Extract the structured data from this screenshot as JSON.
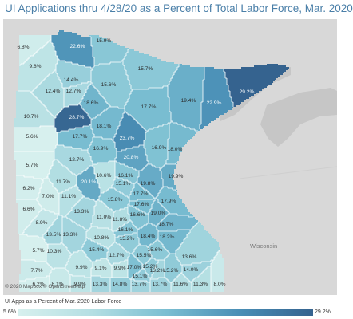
{
  "title": "UI Applications thru 4/28/20 as a Percent of Total Labor Force, Mar. 2020",
  "attribution": "© 2020 Mapbox © OpenStreetMap",
  "neighbor_label": "Wisconsin",
  "legend": {
    "title": "UI Apps as a Percent of Mar. 2020 Labor Force",
    "min_label": "5.6%",
    "max_label": "29.2%",
    "min": 5.6,
    "max": 29.2,
    "color_low": "#d7f0ee",
    "color_high": "#35638f"
  },
  "colors": {
    "background": "#d8d8d8",
    "water": "#c6c6c6",
    "county_border": "#ffffff",
    "title": "#4a7fa8"
  },
  "counties": [
    {
      "label": "6.8%",
      "value": 6.8
    },
    {
      "label": "22.6%",
      "value": 22.6
    },
    {
      "label": "15.9%",
      "value": 15.9
    },
    {
      "label": "9.8%",
      "value": 9.8
    },
    {
      "label": "15.7%",
      "value": 15.7
    },
    {
      "label": "14.4%",
      "value": 14.4
    },
    {
      "label": "12.4%",
      "value": 12.4
    },
    {
      "label": "12.7%",
      "value": 12.7
    },
    {
      "label": "15.6%",
      "value": 15.6
    },
    {
      "label": "18.6%",
      "value": 18.6
    },
    {
      "label": "17.7%",
      "value": 17.7
    },
    {
      "label": "19.4%",
      "value": 19.4
    },
    {
      "label": "22.9%",
      "value": 22.9
    },
    {
      "label": "29.2%",
      "value": 29.2
    },
    {
      "label": "10.7%",
      "value": 10.7
    },
    {
      "label": "28.7%",
      "value": 28.7
    },
    {
      "label": "18.1%",
      "value": 18.1
    },
    {
      "label": "5.6%",
      "value": 5.6
    },
    {
      "label": "17.7%",
      "value": 17.7
    },
    {
      "label": "23.7%",
      "value": 23.7
    },
    {
      "label": "16.9%",
      "value": 16.9
    },
    {
      "label": "16.9%",
      "value": 16.9
    },
    {
      "label": "18.0%",
      "value": 18.0
    },
    {
      "label": "20.8%",
      "value": 20.8
    },
    {
      "label": "12.7%",
      "value": 12.7
    },
    {
      "label": "5.7%",
      "value": 5.7
    },
    {
      "label": "10.6%",
      "value": 10.6
    },
    {
      "label": "16.1%",
      "value": 16.1
    },
    {
      "label": "19.8%",
      "value": 19.8
    },
    {
      "label": "19.9%",
      "value": 19.9
    },
    {
      "label": "11.7%",
      "value": 11.7
    },
    {
      "label": "20.1%",
      "value": 20.1
    },
    {
      "label": "15.1%",
      "value": 15.1
    },
    {
      "label": "6.2%",
      "value": 6.2
    },
    {
      "label": "7.0%",
      "value": 7.0
    },
    {
      "label": "11.1%",
      "value": 11.1
    },
    {
      "label": "17.7%",
      "value": 17.7
    },
    {
      "label": "15.8%",
      "value": 15.8
    },
    {
      "label": "17.9%",
      "value": 17.9
    },
    {
      "label": "17.6%",
      "value": 17.6
    },
    {
      "label": "6.6%",
      "value": 6.6
    },
    {
      "label": "13.3%",
      "value": 13.3
    },
    {
      "label": "19.0%",
      "value": 19.0
    },
    {
      "label": "16.6%",
      "value": 16.6
    },
    {
      "label": "11.0%",
      "value": 11.0
    },
    {
      "label": "11.8%",
      "value": 11.8
    },
    {
      "label": "8.9%",
      "value": 8.9
    },
    {
      "label": "13.5%",
      "value": 13.5
    },
    {
      "label": "18.7%",
      "value": 18.7
    },
    {
      "label": "16.1%",
      "value": 16.1
    },
    {
      "label": "13.3%",
      "value": 13.3
    },
    {
      "label": "18.4%",
      "value": 18.4
    },
    {
      "label": "18.2%",
      "value": 18.2
    },
    {
      "label": "10.8%",
      "value": 10.8
    },
    {
      "label": "15.2%",
      "value": 15.2
    },
    {
      "label": "15.4%",
      "value": 15.4
    },
    {
      "label": "15.6%",
      "value": 15.6
    },
    {
      "label": "5.7%",
      "value": 5.7
    },
    {
      "label": "10.3%",
      "value": 10.3
    },
    {
      "label": "12.7%",
      "value": 12.7
    },
    {
      "label": "15.5%",
      "value": 15.5
    },
    {
      "label": "13.6%",
      "value": 13.6
    },
    {
      "label": "9.1%",
      "value": 9.1
    },
    {
      "label": "17.0%",
      "value": 17.0
    },
    {
      "label": "15.2%",
      "value": 15.2
    },
    {
      "label": "7.7%",
      "value": 7.7
    },
    {
      "label": "9.9%",
      "value": 9.9
    },
    {
      "label": "9.9%",
      "value": 9.9
    },
    {
      "label": "15.1%",
      "value": 15.1
    },
    {
      "label": "13.2%",
      "value": 13.2
    },
    {
      "label": "15.2%",
      "value": 15.2
    },
    {
      "label": "14.0%",
      "value": 14.0
    },
    {
      "label": "6.2%",
      "value": 6.2
    },
    {
      "label": "8.1%",
      "value": 8.1
    },
    {
      "label": "9.9%",
      "value": 9.9
    },
    {
      "label": "13.3%",
      "value": 13.3
    },
    {
      "label": "14.8%",
      "value": 14.8
    },
    {
      "label": "13.7%",
      "value": 13.7
    },
    {
      "label": "13.7%",
      "value": 13.7
    },
    {
      "label": "11.6%",
      "value": 11.6
    },
    {
      "label": "11.3%",
      "value": 11.3
    },
    {
      "label": "8.0%",
      "value": 8.0
    }
  ]
}
